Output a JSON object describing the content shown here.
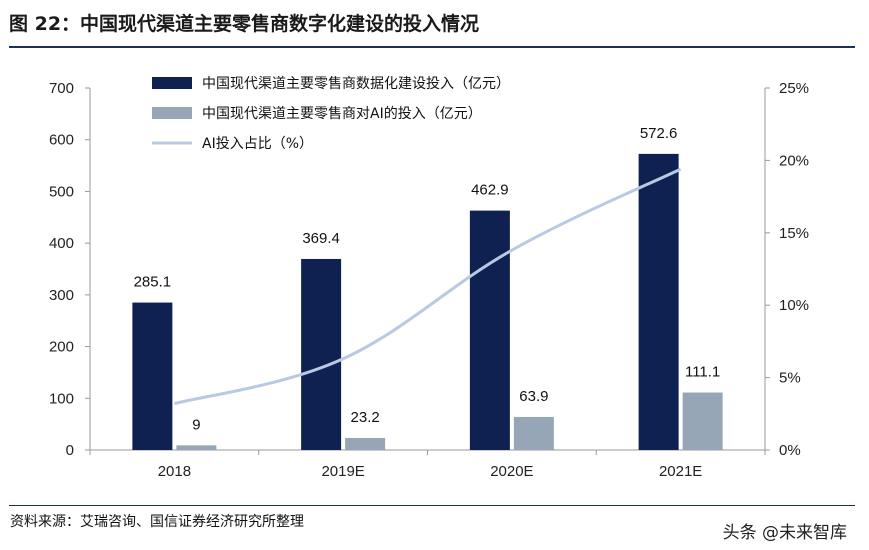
{
  "header": {
    "title": "图 22：中国现代渠道主要零售商数字化建设的投入情况"
  },
  "footer": {
    "source": "资料来源：艾瑞咨询、国信证券经济研究所整理",
    "watermark": "头条 @未来智库"
  },
  "colors": {
    "bar_primary": "#0e2151",
    "bar_secondary": "#97a6b7",
    "line": "#b9c9e4",
    "axis": "#9a9a9a"
  },
  "chart_data": {
    "type": "bar",
    "categories": [
      "2018",
      "2019E",
      "2020E",
      "2021E"
    ],
    "series": [
      {
        "name": "中国现代渠道主要零售商数据化建设投入（亿元）",
        "kind": "bar",
        "axis": "left",
        "values": [
          285.1,
          369.4,
          462.9,
          572.6
        ],
        "labels": [
          "285.1",
          "369.4",
          "462.9",
          "572.6"
        ]
      },
      {
        "name": "中国现代渠道主要零售商对AI的投入（亿元）",
        "kind": "bar",
        "axis": "left",
        "values": [
          9,
          23.2,
          63.9,
          111.1
        ],
        "labels": [
          "9",
          "23.2",
          "63.9",
          "111.1"
        ]
      },
      {
        "name": "AI投入占比（%）",
        "kind": "line",
        "axis": "right",
        "values": [
          3.2,
          6.3,
          13.8,
          19.4
        ]
      }
    ],
    "y_left": {
      "ylim": [
        0,
        700
      ],
      "ticks": [
        "0",
        "100",
        "200",
        "300",
        "400",
        "500",
        "600",
        "700"
      ]
    },
    "y_right": {
      "ylim": [
        0,
        25
      ],
      "ticks": [
        "0%",
        "5%",
        "10%",
        "15%",
        "20%",
        "25%"
      ]
    },
    "legend": "top-left",
    "grid": false
  }
}
